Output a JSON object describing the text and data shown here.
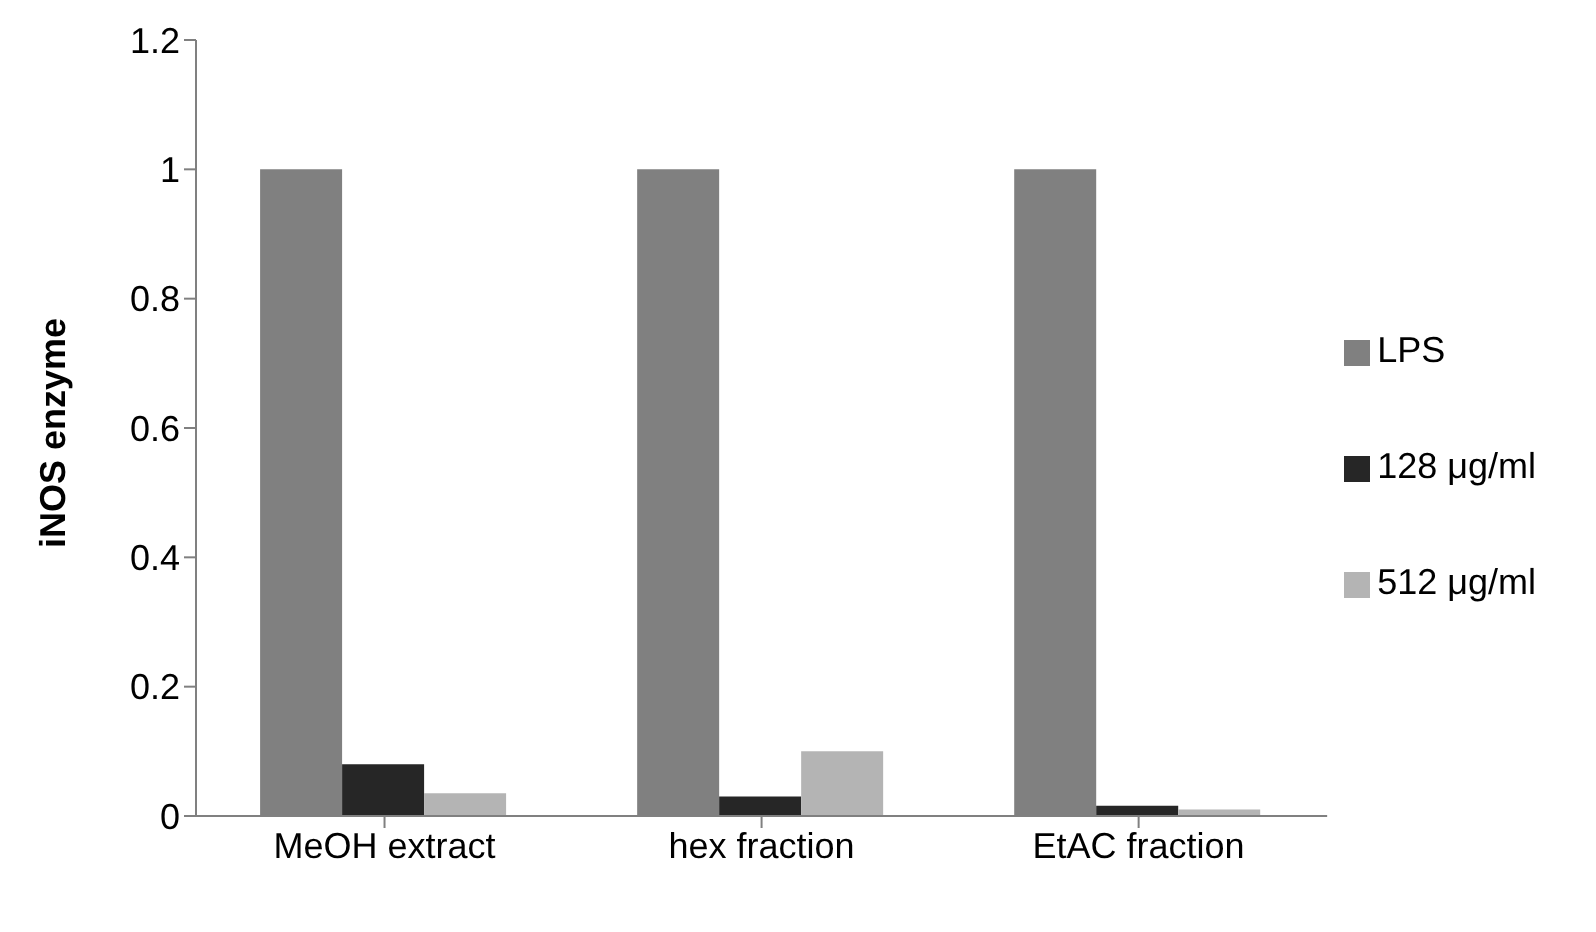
{
  "chart_data": {
    "type": "bar",
    "ylabel": "iNOS enzyme",
    "categories": [
      "MeOH extract",
      "hex fraction",
      "EtAC fraction"
    ],
    "series": [
      {
        "name": "LPS",
        "color": "#808080",
        "values": [
          1,
          1,
          1
        ]
      },
      {
        "name": "128 μg/ml",
        "color": "#262626",
        "values": [
          0.08,
          0.03,
          0.016
        ]
      },
      {
        "name": "512 μg/ml",
        "color": "#b4b4b4",
        "values": [
          0.035,
          0.1,
          0.01
        ]
      }
    ],
    "ylim": [
      0,
      1.2
    ],
    "yticks": [
      0,
      0.2,
      0.4,
      0.6,
      0.8,
      1,
      1.2
    ],
    "grid": false,
    "legend": "right"
  }
}
